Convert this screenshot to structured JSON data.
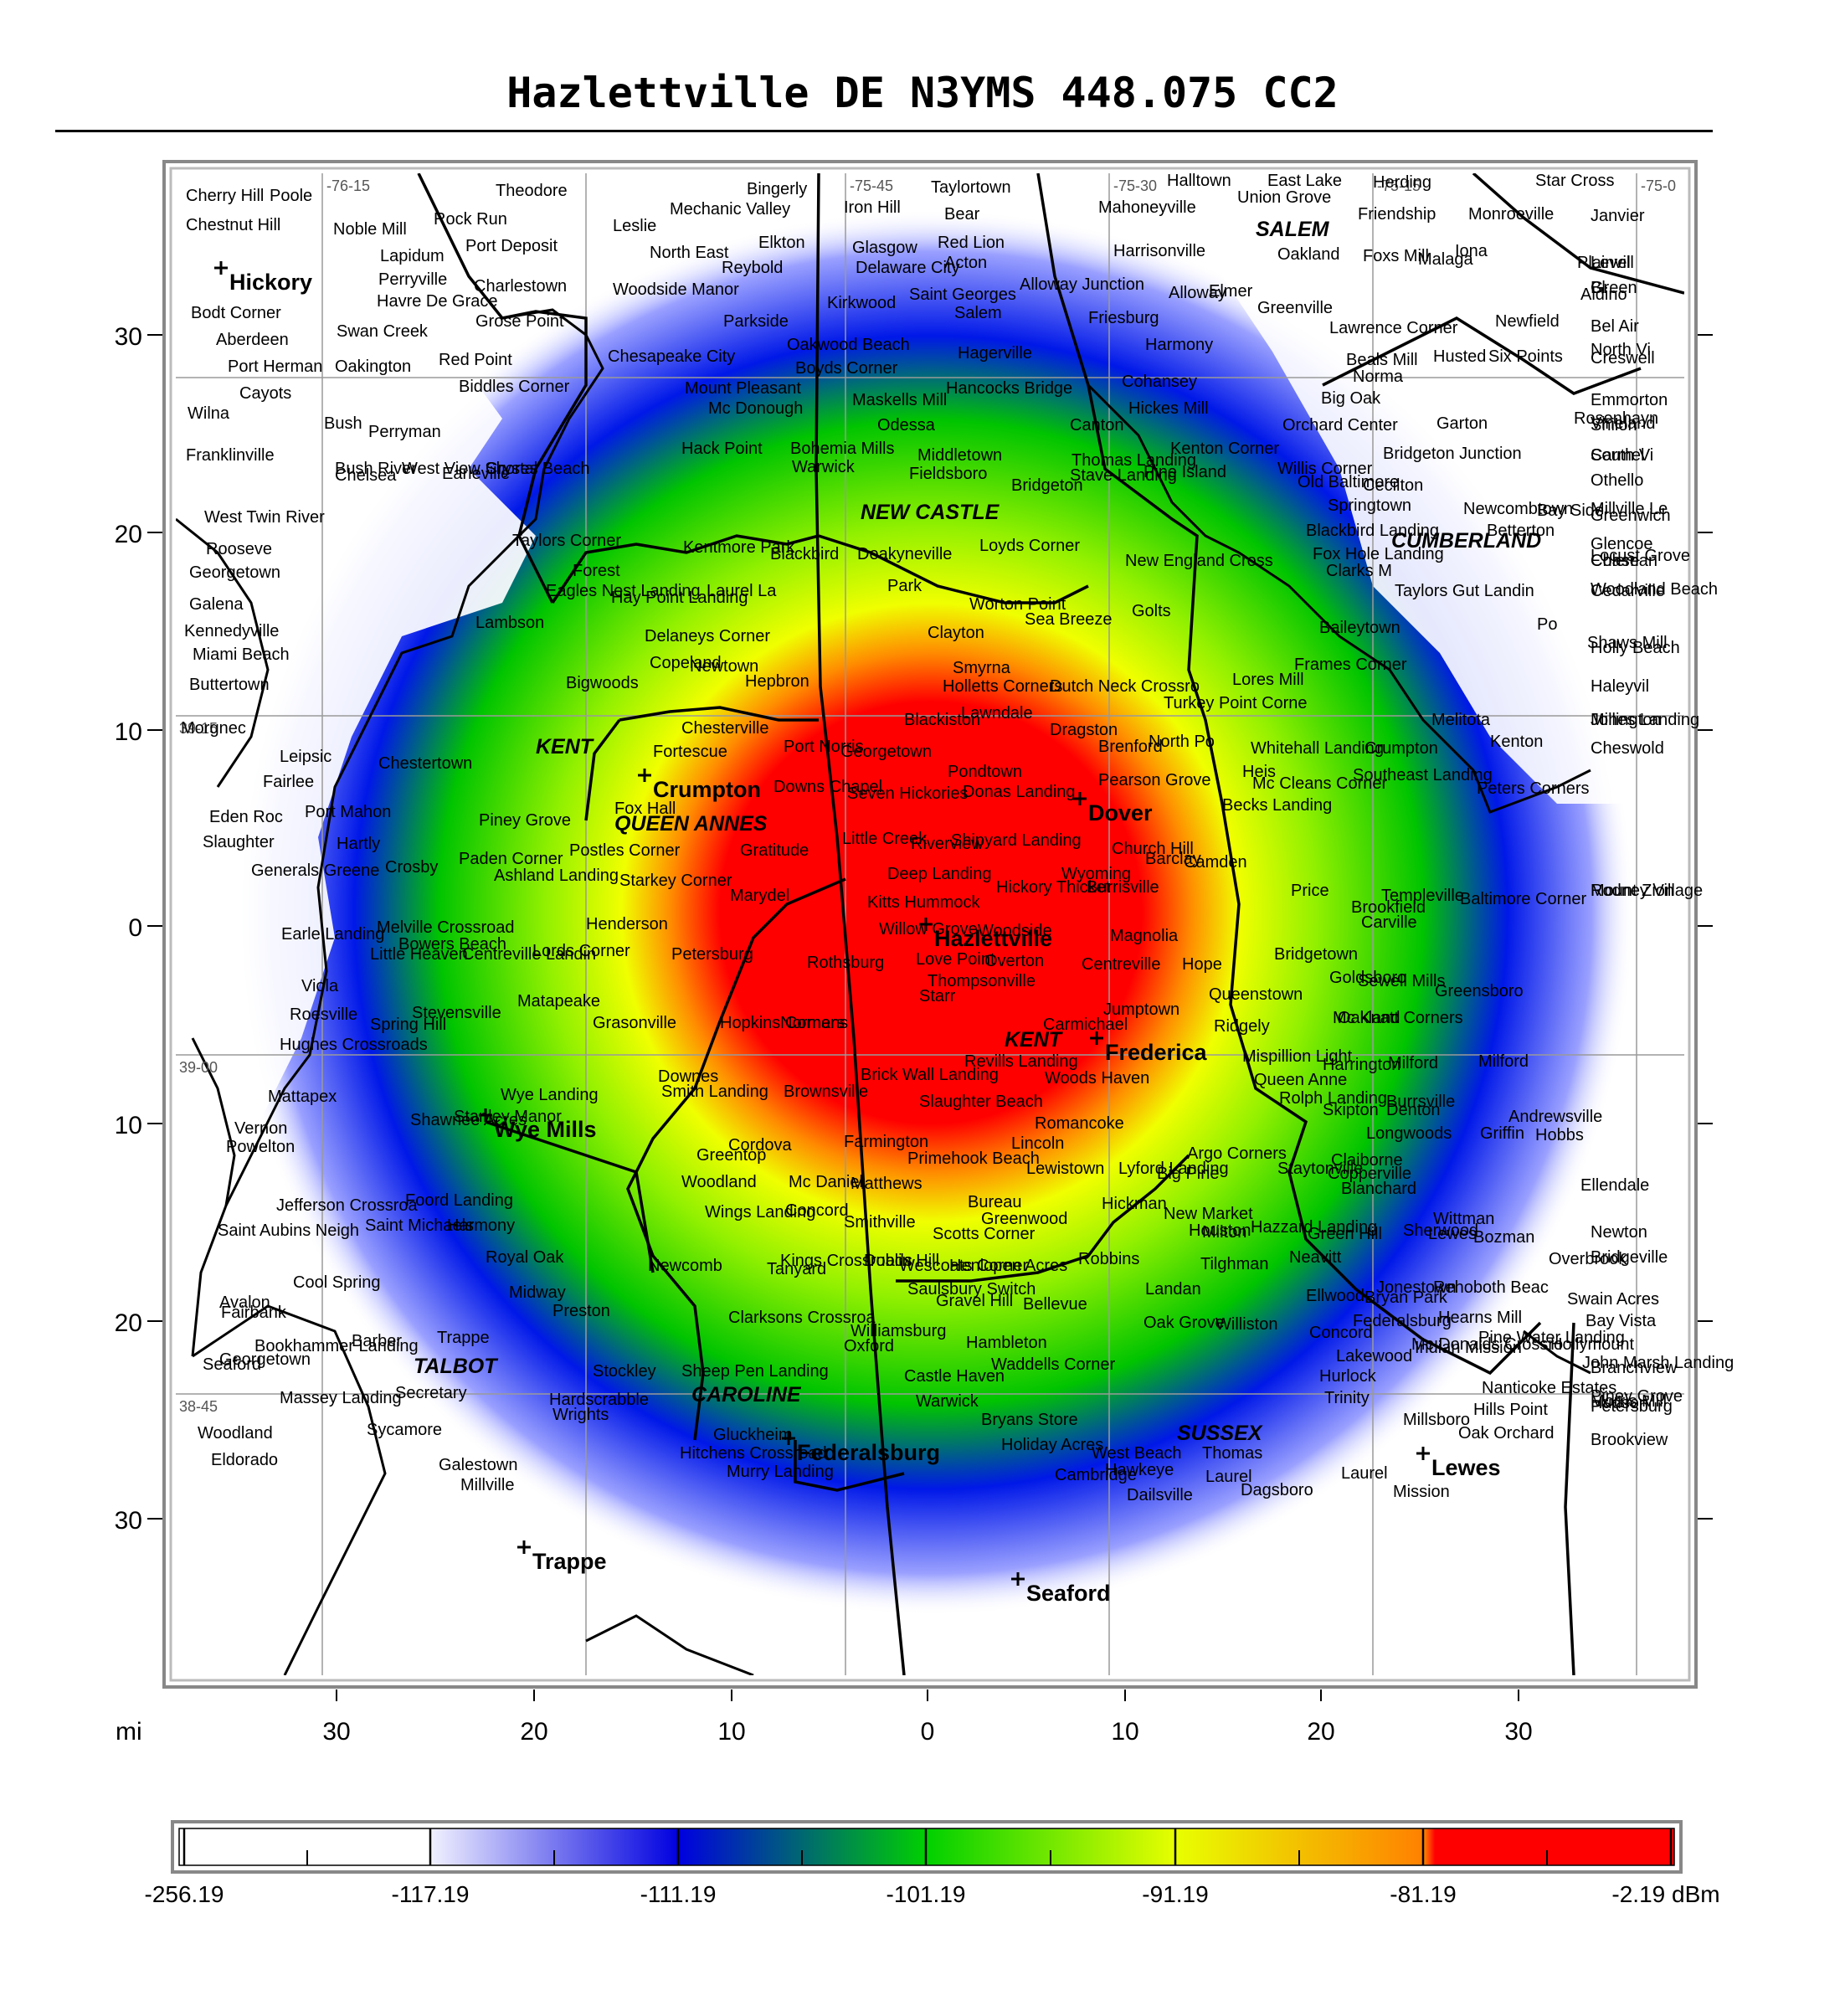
{
  "title": "Hazlettville DE N3YMS 448.075 CC2",
  "axes": {
    "unit": "mi",
    "x_ticks": [
      "30",
      "20",
      "10",
      "0",
      "10",
      "20",
      "30"
    ],
    "y_ticks": [
      "30",
      "20",
      "10",
      "0",
      "10",
      "20",
      "30"
    ]
  },
  "grid_labels": [
    "-76-15",
    "-75-45",
    "-75-30",
    "-75-15",
    "-75-0",
    "39-15",
    "39-00",
    "38-45"
  ],
  "colorbar": {
    "labels": [
      "-256.19",
      "-117.19",
      "-111.19",
      "-101.19",
      "-91.19",
      "-81.19",
      "-2.19 dBm"
    ],
    "colors": [
      "#ffffff",
      "#ffffff",
      "#d8d8ff",
      "#0000e0",
      "#00d000",
      "#e8ff00",
      "#ff8000",
      "#ff0000"
    ]
  },
  "markers": [
    {
      "name": "Hickory"
    },
    {
      "name": "Crumpton"
    },
    {
      "name": "Dover"
    },
    {
      "name": "Hazlettville"
    },
    {
      "name": "Frederica"
    },
    {
      "name": "Wye Mills"
    },
    {
      "name": "Federalsburg"
    },
    {
      "name": "Trappe"
    },
    {
      "name": "Seaford"
    },
    {
      "name": "Lewes"
    }
  ],
  "counties": [
    "SALEM",
    "NEW CASTLE",
    "CUMBERLAND",
    "KENT",
    "QUEEN ANNES",
    "KENT",
    "TALBOT",
    "CAROLINE",
    "SUSSEX"
  ],
  "places": [
    "Cherry Hill",
    "Poole",
    "Theodore",
    "Bingerly",
    "Taylortown",
    "Halltown",
    "East Lake",
    "Herding",
    "Star Cross",
    "Chestnut Hill",
    "Noble Mill",
    "Rock Run",
    "Leslie",
    "Mechanic Valley",
    "Iron Hill",
    "Bear",
    "Mahoneyville",
    "Union Grove",
    "Friendship",
    "Monroeville",
    "Janvier",
    "Lapidum",
    "Port Deposit",
    "North East",
    "Elkton",
    "Glasgow",
    "Red Lion",
    "Harrisonville",
    "Oakland",
    "Foxs Mill",
    "Iona",
    "Plainvill",
    "Level",
    "Perryville",
    "Charlestown",
    "Woodside Manor",
    "Reybold",
    "Delaware City",
    "Acton",
    "Alloway Junction",
    "Elmer",
    "Malaga",
    "Aldino",
    "Havre De Grace",
    "Grose Point",
    "Parkside",
    "Kirkwood",
    "Saint Georges",
    "Salem",
    "Alloway",
    "Greenville",
    "Bl",
    "Green",
    "Bodt Corner",
    "Swan Creek",
    "Red Point",
    "Chesapeake City",
    "Oakwood Beach",
    "Friesburg",
    "Lawrence Corner",
    "Newfield",
    "Bel Air",
    "Aberdeen",
    "Oakington",
    "Biddles Corner",
    "Hagerville",
    "Harmony",
    "Beals Mill",
    "Husted",
    "Six Points",
    "North Vi",
    "Creswell",
    "Port Herman",
    "Mount Pleasant",
    "Boyds Corner",
    "Hancocks Bridge",
    "Cohansey",
    "Norma",
    "Emmorton",
    "Cayots",
    "Mc Donough",
    "Maskells Mill",
    "Hickes Mill",
    "Big Oak",
    "Rosenhayn",
    "Vineland",
    "Wilna",
    "Bush",
    "Perryman",
    "Odessa",
    "Canton",
    "Orchard Center",
    "Garton",
    "Shiloh",
    "Franklinville",
    "Hack Point",
    "Bohemia Mills",
    "Middletown",
    "Thomas Landing",
    "Kenton Corner",
    "Bridgeton Junction",
    "South Vi",
    "Bush River",
    "West View Shores",
    "Crystal Beach",
    "Warwick",
    "Fieldsboro",
    "Stave Landing",
    "Pine Island",
    "Willis Corner",
    "Carmel",
    "Chelsea",
    "Earleville",
    "Bridgeton",
    "Old Baltimore",
    "Cecilton",
    "Othello",
    "Springtown",
    "Newcombtown",
    "Millville Le",
    "West Twin River",
    "Taylors Corner",
    "Blackbird Landing",
    "Bay Side",
    "Greenwich",
    "Rooseve",
    "Kentmore Park",
    "Fox Hole Landing",
    "Betterton",
    "Glencoe",
    "Georgetown",
    "Forest",
    "Blackbird",
    "Deakyneville",
    "Loyds Corner",
    "New England Cross",
    "Clarks M",
    "Chase",
    "Coleman",
    "Locust Grove",
    "Galena",
    "Eagles Nest Landing",
    "Hay Point Landing",
    "Laurel La",
    "Park",
    "Worton Point",
    "Golts",
    "Taylors Gut Landin",
    "Woodland Beach",
    "Cedarville",
    "Kennedyville",
    "Lambson",
    "Delaneys Corner",
    "Clayton",
    "Sea Breeze",
    "Baileytown",
    "Po",
    "Miami Beach",
    "Copeland",
    "Newtown",
    "Hepbron",
    "Smyrna",
    "Frames Corner",
    "Shaws Mill",
    "Holly Beach",
    "Buttertown",
    "Bigwoods",
    "Holletts Corners",
    "Dutch Neck Crossro",
    "Turkey Point Corne",
    "Lores Mill",
    "Haleyvil",
    "Morgnec",
    "Chesterville",
    "Blackiston",
    "Lawndale",
    "Dragston",
    "North Po",
    "Melitota",
    "Jones Landing",
    "Millington",
    "Brenford",
    "Whitehall Landing",
    "Crumpton",
    "Kenton",
    "Cheswold",
    "Leipsic",
    "Fortescue",
    "Port Norris",
    "Georgetown",
    "Pondtown",
    "Pearson Grove",
    "Heis",
    "Fairlee",
    "Chestertown",
    "Downs Chapel",
    "Seven Hickories",
    "Donas Landing",
    "Mc Cleans Corner",
    "Peters Corners",
    "Eden Roc",
    "Port Mahon",
    "Piney Grove",
    "Fox Hall",
    "Little Creek",
    "Shipyard Landing",
    "Becks Landing",
    "Southeast Landing",
    "Slaughter",
    "Hartly",
    "Paden Corner",
    "Postles Corner",
    "Gratitude",
    "Deep Landing",
    "Riverview",
    "Church Hill",
    "Barclay",
    "Templeville",
    "Rodney Village",
    "Generals Greene",
    "Crosby",
    "Ashland Landing",
    "Starkey Corner",
    "Wyoming",
    "Camden",
    "Mount Zion",
    "Marydel",
    "Kitts Hummock",
    "Hickory Thicket",
    "Burrisville",
    "Price",
    "Brookfield",
    "Earle Landing",
    "Melville Crossroad",
    "Henderson",
    "Willow Grove",
    "Woodside",
    "Magnolia",
    "Carville",
    "Baltimore Corner",
    "Bowers Beach",
    "Centreville Landin",
    "Petersburg",
    "Love Point",
    "Overton",
    "Centreville",
    "Hope",
    "Bridgetown",
    "Goldsboro",
    "Viola",
    "Little Heaven",
    "Lords Corner",
    "Rothsburg",
    "Thompsonville",
    "Queenstown",
    "Sewell Mills",
    "Roesville",
    "Stevensville",
    "Starr",
    "Jumptown",
    "Oakland",
    "Greensboro",
    "Hughes Crossroads",
    "Spring Hill",
    "Matapeake",
    "Grasonville",
    "Hopkins Corners",
    "Normans",
    "Carmichael",
    "Ridgely",
    "Mc Knatt Corners",
    "Revills Landing",
    "Mispillion Light",
    "Downes",
    "Brick Wall Landing",
    "Woods Haven",
    "Queen Anne",
    "Harrington",
    "Milford",
    "Milford",
    "Mattapex",
    "Wye Landing",
    "Smith Landing",
    "Brownsville",
    "Slaughter Beach",
    "Rolph Landing",
    "Burrsville",
    "Vernon",
    "Stanley Manor",
    "Romancoke",
    "Skipton",
    "Denton",
    "Andrewsville",
    "Powelton",
    "Shawnee Acres",
    "Cordova",
    "Farmington",
    "Lincoln",
    "Argo Corners",
    "Longwoods",
    "Griffin",
    "Hobbs",
    "Greentop",
    "Primehook Beach",
    "Claiborne",
    "Woodland",
    "Lewistown",
    "Lyford Landing",
    "Big Pine",
    "Staytonville",
    "Copperville",
    "Jefferson Crossroa",
    "Foord Landing",
    "Mc Daniel",
    "Matthews",
    "Bureau",
    "Hickman",
    "Blanchard",
    "Ellendale",
    "Saint Michaels",
    "Wings Landing",
    "Concord",
    "Greenwood",
    "New Market",
    "Hazzard Landing",
    "Wittman",
    "Saint Aubins Neigh",
    "Harmony",
    "Smithville",
    "Scotts Corner",
    "Houston",
    "Green Hill",
    "Sherwood",
    "Bozman",
    "Newton",
    "Kings Crossroads",
    "Robbins",
    "Milton",
    "Lewes",
    "Overbrook",
    "Royal Oak",
    "Newcomb",
    "Tanyard",
    "Dublin Hill",
    "Wescoats Corner",
    "Henlopen Acres",
    "Tilghman",
    "Neavitt",
    "Bridgeville",
    "Cool Spring",
    "Midway",
    "Landan",
    "Jonestown",
    "Rehoboth Beac",
    "Avalon",
    "Preston",
    "Clarksons Crossroa",
    "Saulsbury Switch",
    "Gravel Hill",
    "Bellevue",
    "Ellwood",
    "Bryan Park",
    "Swain Acres",
    "Georgetown",
    "Fairbank",
    "Oxford",
    "Hambleton",
    "Williston",
    "Federalsburg",
    "Hearns Mill",
    "Bay Vista",
    "Trappe",
    "Williamsburg",
    "Oak Grove",
    "Concord",
    "Mc Donalds Crossro",
    "Indian Mission",
    "Hollymount",
    "Bookhammer Landing",
    "Barber",
    "Waddells Corner",
    "Lakewood",
    "Pine Water Landing",
    "John Marsh Landing",
    "Branchview",
    "Seaford",
    "Stockley",
    "Sheep Pen Landing",
    "Castle Haven",
    "Hurlock",
    "Nanticoke Estates",
    "Piney Grove",
    "Morris Mill",
    "Massey Landing",
    "Secretary",
    "Hardscrabble",
    "Warwick",
    "Trinity",
    "Hills Point",
    "Petersburg",
    "Hudson",
    "Woodland",
    "Sycamore",
    "Bryans Store",
    "Millsboro",
    "Oak Orchard",
    "Wrights",
    "Gluckheim",
    "Brookview",
    "Eldorado",
    "Hitchens Crossroad",
    "Holiday Acres",
    "West Beach",
    "Thomas",
    "Galestown",
    "Murry Landing",
    "Cambridge",
    "Hawkeye",
    "Laurel",
    "Laurel",
    "Millville",
    "Dailsville",
    "Dagsboro",
    "Mission"
  ]
}
